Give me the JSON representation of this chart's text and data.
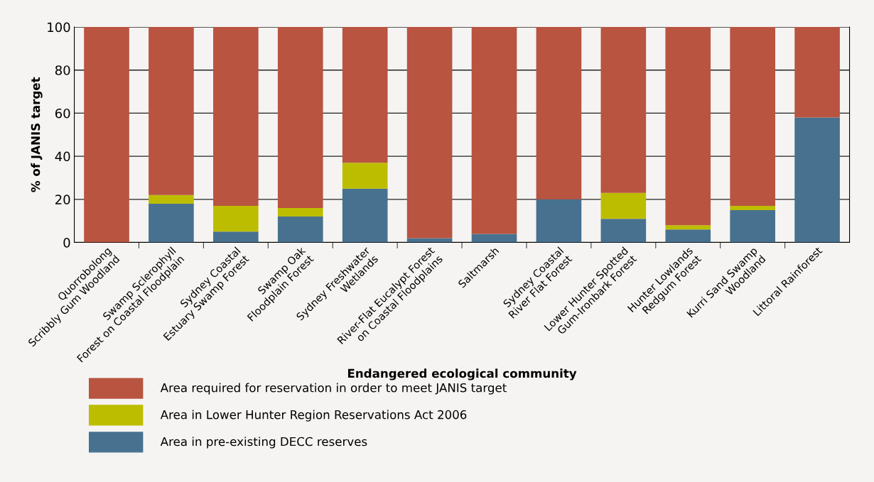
{
  "chart_data": {
    "type": "bar",
    "stacked": true,
    "xlabel": "Endangered ecological community",
    "ylabel": "% of JANIS target",
    "categories": [
      "Quorrobolong\nScribbly Gum Woodland",
      "Swamp Sclerophyll\nForest on Coastal Floodplain",
      "Sydney Coastal\nEstuary Swamp Forest",
      "Swamp Oak\nFloodplain Forest",
      "Sydney Freshwater\nWetlands",
      "River-Flat Eucalypt Forest\non Coastal Floodplains",
      "Saltmarsh",
      "Sydney Coastal\nRiver Flat Forest",
      "Lower Hunter Spotted\nGum-Ironbark Forest",
      "Hunter Lowlands\nRedgum Forest",
      "Kurri Sand Swamp\nWoodland",
      "Littoral Rainforest"
    ],
    "series": [
      {
        "name": "Area in pre-existing DECC reserves",
        "color": "#47718f",
        "values": [
          0,
          18,
          5,
          12,
          25,
          2,
          4,
          20,
          11,
          6,
          15,
          58
        ]
      },
      {
        "name": "Area in Lower Hunter Region Reservations Act 2006",
        "color": "#bdbd00",
        "values": [
          0,
          4,
          12,
          4,
          12,
          0,
          0,
          0,
          12,
          2,
          2,
          0
        ]
      },
      {
        "name": "Area required for reservation in order to meet JANIS target",
        "color": "#b85440",
        "values": [
          100,
          78,
          83,
          84,
          63,
          98,
          96,
          80,
          77,
          92,
          83,
          42
        ]
      }
    ],
    "ylim": [
      0,
      100
    ],
    "yticks": [
      0,
      20,
      40,
      60,
      80,
      100
    ],
    "grid": "y",
    "legend": "bottom"
  }
}
